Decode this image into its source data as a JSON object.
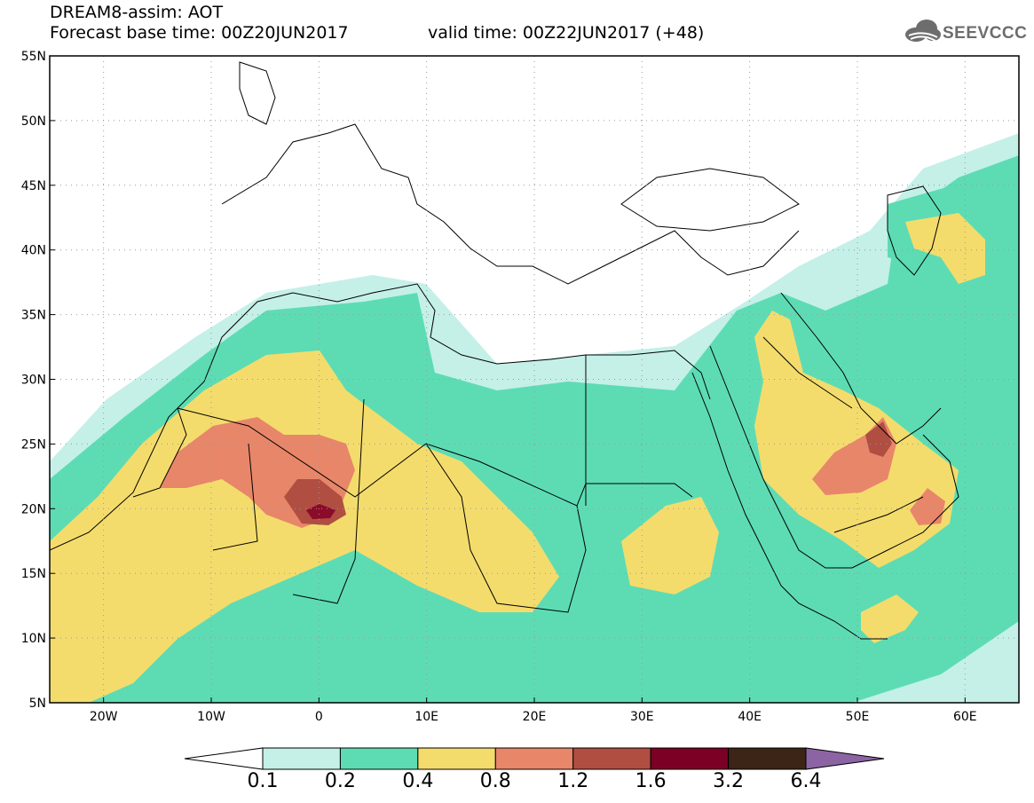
{
  "title": {
    "line1": "DREAM8-assim: AOT",
    "line2": "Forecast base time: 00Z20JUN2017",
    "valid": "valid time: 00Z22JUN2017 (+48)"
  },
  "logo": {
    "text": "SEEVCCC",
    "icon": "cloud-icon"
  },
  "map": {
    "lon_range": [
      -25,
      65
    ],
    "lat_range": [
      5,
      55
    ],
    "lat_labels": [
      "5N",
      "10N",
      "15N",
      "20N",
      "25N",
      "30N",
      "35N",
      "40N",
      "45N",
      "50N",
      "55N"
    ],
    "lat_values": [
      5,
      10,
      15,
      20,
      25,
      30,
      35,
      40,
      45,
      50,
      55
    ],
    "lon_labels": [
      "20W",
      "10W",
      "0",
      "10E",
      "20E",
      "30E",
      "40E",
      "50E",
      "60E"
    ],
    "lon_values": [
      -20,
      -10,
      0,
      10,
      20,
      30,
      40,
      50,
      60
    ],
    "grid": "dotted",
    "colors": {
      "c01": "#c4f0e8",
      "c02": "#5ddcb4",
      "c04": "#f4dc6c",
      "c08": "#e8866a",
      "c12": "#b04e42",
      "c16": "#8c0a2a"
    }
  },
  "colorbar": {
    "colors": [
      "#c4f0e8",
      "#5ddcb4",
      "#f4dc6c",
      "#e8866a",
      "#b04e42",
      "#7c0026",
      "#3c2416",
      "#8c64a4"
    ],
    "labels": [
      "0.1",
      "0.2",
      "0.4",
      "0.8",
      "1.2",
      "1.6",
      "3.2",
      "6.4"
    ]
  }
}
